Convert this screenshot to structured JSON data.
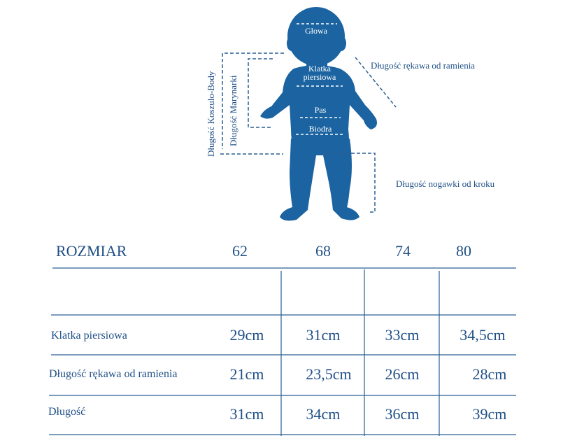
{
  "diagram": {
    "labels": {
      "head": "Głowa",
      "chest": "Klatka piersiowa",
      "chest_line1": "Klatka",
      "chest_line2": "piersiowa",
      "waist": "Pas",
      "hips": "Biodra",
      "sleeve": "Długość rękawa od ramienia",
      "leg": "Długość nogawki od kroku",
      "bodysuit_length": "Długość Koszulo-Body",
      "jacket_length": "Długość Marynarki"
    },
    "colors": {
      "silhouette": "#1b64a1",
      "text": "#1f4f86",
      "lines": "#2a5f93"
    }
  },
  "table": {
    "header_label": "ROZMIAR",
    "sizes": [
      "62",
      "68",
      "74",
      "80"
    ],
    "rows": [
      {
        "label": "Klatka piersiowa",
        "values": [
          "29cm",
          "31cm",
          "33cm",
          "34,5cm"
        ]
      },
      {
        "label": "Długość rękawa od ramienia",
        "values": [
          "21cm",
          "23,5cm",
          "26cm",
          "28cm"
        ]
      },
      {
        "label": "Długość",
        "values": [
          "31cm",
          "34cm",
          "36cm",
          "39cm"
        ]
      }
    ]
  }
}
